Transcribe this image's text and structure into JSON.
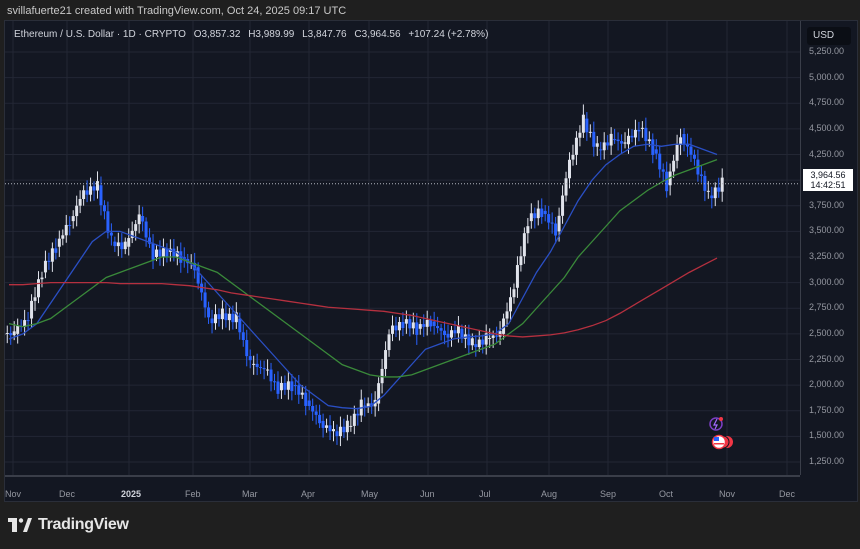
{
  "credit": "svillafuerte21 created with TradingView.com, Oct 24, 2025 09:17 UTC",
  "legend": {
    "symbol": "Ethereum / U.S. Dollar · 1D · CRYPTO",
    "open": "O3,857.32",
    "high": "H3,989.99",
    "low": "L3,847.76",
    "close": "C3,964.56",
    "change": "+107.24 (+2.78%)"
  },
  "currency_button": "USD",
  "price_label": {
    "price": "3,964.56",
    "countdown": "14:42:51"
  },
  "brand": "TradingView",
  "colors": {
    "background": "#131722",
    "bull_candle": "#e0e3eb",
    "bear_candle": "#2962ff",
    "ma_short": "#2a4fc4",
    "ma_mid": "#3a8a3a",
    "ma_long": "#b5303f"
  },
  "chart_data": {
    "type": "candlestick",
    "title": "Ethereum / U.S. Dollar · 1D · CRYPTO",
    "xlabel": "",
    "ylabel": "USD",
    "ylim": [
      1100,
      5400
    ],
    "y_ticks": [
      "5,250.00",
      "5,000.00",
      "4,750.00",
      "4,500.00",
      "4,250.00",
      "4,000.00",
      "3,750.00",
      "3,500.00",
      "3,250.00",
      "3,000.00",
      "2,750.00",
      "2,500.00",
      "2,250.00",
      "2,000.00",
      "1,750.00",
      "1,500.00",
      "1,250.00"
    ],
    "x_ticks": [
      "Nov",
      "Dec",
      "2025",
      "Feb",
      "Mar",
      "Apr",
      "May",
      "Jun",
      "Jul",
      "Aug",
      "Sep",
      "Oct",
      "Nov",
      "Dec"
    ],
    "grid": true,
    "last_price": 3964.56,
    "weekly_closes_approx": {
      "x": [
        "2024-11-01",
        "2024-11-08",
        "2024-11-15",
        "2024-11-22",
        "2024-11-29",
        "2024-12-06",
        "2024-12-13",
        "2024-12-20",
        "2024-12-27",
        "2025-01-03",
        "2025-01-10",
        "2025-01-17",
        "2025-01-24",
        "2025-01-31",
        "2025-02-07",
        "2025-02-14",
        "2025-02-21",
        "2025-02-28",
        "2025-03-07",
        "2025-03-14",
        "2025-03-21",
        "2025-03-28",
        "2025-04-04",
        "2025-04-11",
        "2025-04-18",
        "2025-04-25",
        "2025-05-02",
        "2025-05-09",
        "2025-05-16",
        "2025-05-23",
        "2025-05-30",
        "2025-06-06",
        "2025-06-13",
        "2025-06-20",
        "2025-06-27",
        "2025-07-04",
        "2025-07-11",
        "2025-07-18",
        "2025-07-25",
        "2025-08-01",
        "2025-08-08",
        "2025-08-15",
        "2025-08-22",
        "2025-08-29",
        "2025-09-05",
        "2025-09-12",
        "2025-09-19",
        "2025-09-26",
        "2025-10-03",
        "2025-10-10",
        "2025-10-17",
        "2025-10-24"
      ],
      "close": [
        2500,
        2650,
        3100,
        3350,
        3600,
        3900,
        3950,
        3400,
        3350,
        3650,
        3250,
        3300,
        3250,
        3150,
        2650,
        2700,
        2650,
        2200,
        2150,
        1950,
        2000,
        1850,
        1650,
        1550,
        1600,
        1800,
        1820,
        2500,
        2600,
        2550,
        2620,
        2500,
        2550,
        2400,
        2450,
        2500,
        2950,
        3600,
        3700,
        3500,
        4200,
        4600,
        4300,
        4400,
        4350,
        4500,
        4300,
        3950,
        4450,
        4200,
        3850,
        3964.56
      ]
    },
    "series": [
      {
        "name": "MA short (blue)",
        "values_approx": [
          2450,
          2500,
          2600,
          2800,
          3000,
          3200,
          3400,
          3500,
          3500,
          3450,
          3400,
          3350,
          3300,
          3200,
          3050,
          2900,
          2750,
          2600,
          2450,
          2300,
          2150,
          2000,
          1900,
          1800,
          1780,
          1770,
          1790,
          1900,
          2050,
          2200,
          2350,
          2400,
          2450,
          2470,
          2480,
          2500,
          2600,
          2850,
          3100,
          3300,
          3550,
          3800,
          4000,
          4150,
          4250,
          4330,
          4350,
          4330,
          4350,
          4350,
          4300,
          4250
        ]
      },
      {
        "name": "MA mid (green)",
        "values_approx": [
          2600,
          2570,
          2600,
          2650,
          2750,
          2850,
          2950,
          3050,
          3100,
          3150,
          3200,
          3250,
          3250,
          3200,
          3150,
          3100,
          3000,
          2900,
          2800,
          2700,
          2600,
          2500,
          2400,
          2300,
          2200,
          2150,
          2100,
          2080,
          2080,
          2100,
          2150,
          2200,
          2250,
          2300,
          2350,
          2400,
          2500,
          2600,
          2750,
          2900,
          3050,
          3250,
          3400,
          3550,
          3700,
          3800,
          3900,
          3980,
          4050,
          4100,
          4150,
          4200
        ]
      },
      {
        "name": "MA long (red)",
        "values_approx": [
          2980,
          2980,
          2990,
          3000,
          3000,
          3000,
          3000,
          3000,
          2990,
          2990,
          2990,
          2990,
          2980,
          2970,
          2950,
          2930,
          2900,
          2880,
          2860,
          2840,
          2820,
          2800,
          2780,
          2760,
          2750,
          2740,
          2730,
          2720,
          2700,
          2680,
          2650,
          2620,
          2590,
          2560,
          2530,
          2500,
          2480,
          2470,
          2480,
          2490,
          2510,
          2540,
          2580,
          2630,
          2700,
          2780,
          2860,
          2940,
          3020,
          3100,
          3170,
          3240
        ]
      }
    ]
  }
}
